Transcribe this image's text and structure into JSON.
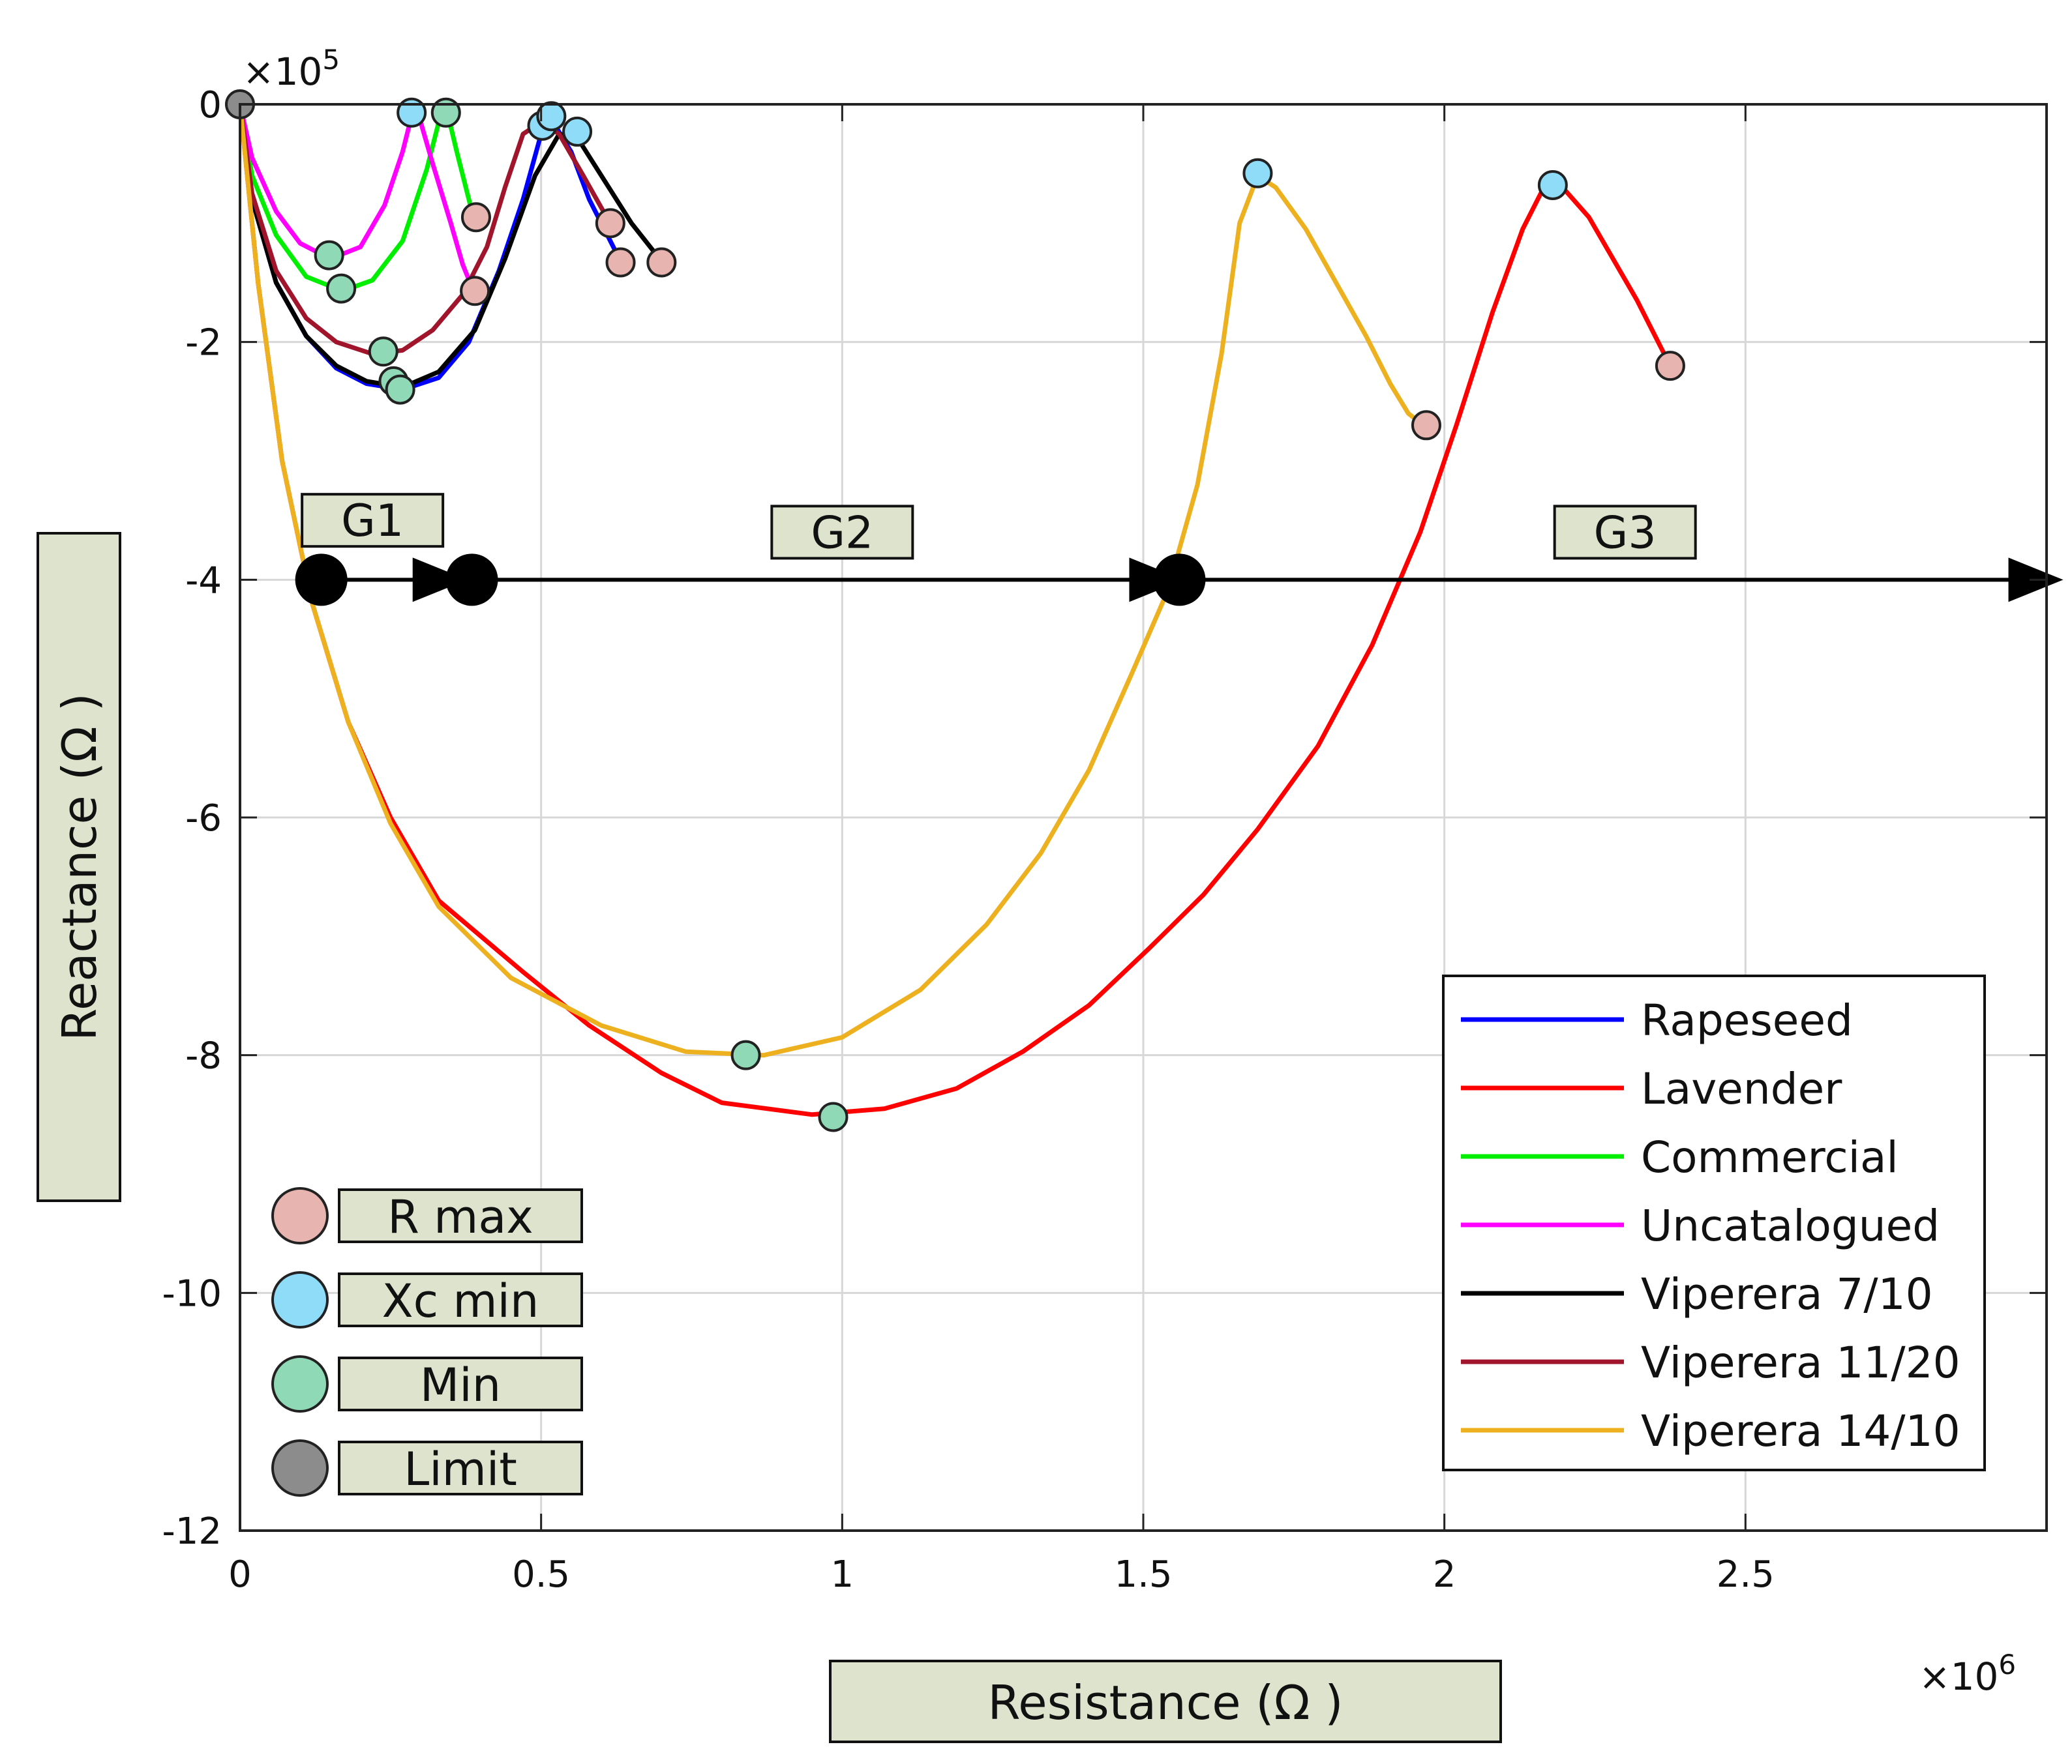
{
  "chart_data": {
    "type": "line",
    "xlabel": "Resistance (Ω )",
    "ylabel": "Reactance (Ω )",
    "x_multiplier": "×10",
    "x_multiplier_exp": "6",
    "y_multiplier": "×10",
    "y_multiplier_exp": "5",
    "xlim": [
      0,
      3.0
    ],
    "ylim": [
      -12,
      0
    ],
    "x_ticks": [
      0,
      0.5,
      1,
      1.5,
      2,
      2.5
    ],
    "x_tick_labels": [
      "0",
      "0.5",
      "1",
      "1.5",
      "2",
      "2.5"
    ],
    "y_ticks": [
      0,
      -2,
      -4,
      -6,
      -8,
      -10,
      -12
    ],
    "y_tick_labels": [
      "0",
      "-2",
      "-4",
      "-6",
      "-8",
      "-10",
      "-12"
    ],
    "grid": true,
    "legend_position": "bottom-right",
    "series": [
      {
        "name": "Rapeseed",
        "color": "#0000ff",
        "points": [
          [
            0,
            0
          ],
          [
            0.02,
            -0.8
          ],
          [
            0.06,
            -1.5
          ],
          [
            0.11,
            -1.95
          ],
          [
            0.16,
            -2.22
          ],
          [
            0.21,
            -2.35
          ],
          [
            0.27,
            -2.4
          ],
          [
            0.33,
            -2.3
          ],
          [
            0.38,
            -2.0
          ],
          [
            0.43,
            -1.4
          ],
          [
            0.47,
            -0.8
          ],
          [
            0.5,
            -0.25
          ],
          [
            0.52,
            -0.15
          ],
          [
            0.55,
            -0.4
          ],
          [
            0.58,
            -0.8
          ],
          [
            0.61,
            -1.1
          ],
          [
            0.635,
            -1.35
          ]
        ]
      },
      {
        "name": "Lavender",
        "color": "#ff0000",
        "points": [
          [
            0,
            0
          ],
          [
            0.03,
            -1.5
          ],
          [
            0.07,
            -3.0
          ],
          [
            0.12,
            -4.2
          ],
          [
            0.18,
            -5.2
          ],
          [
            0.25,
            -6.0
          ],
          [
            0.33,
            -6.7
          ],
          [
            0.47,
            -7.3
          ],
          [
            0.58,
            -7.75
          ],
          [
            0.7,
            -8.15
          ],
          [
            0.8,
            -8.4
          ],
          [
            0.95,
            -8.5
          ],
          [
            1.07,
            -8.45
          ],
          [
            1.19,
            -8.28
          ],
          [
            1.3,
            -7.97
          ],
          [
            1.41,
            -7.58
          ],
          [
            1.51,
            -7.1
          ],
          [
            1.6,
            -6.65
          ],
          [
            1.69,
            -6.1
          ],
          [
            1.79,
            -5.4
          ],
          [
            1.88,
            -4.55
          ],
          [
            1.96,
            -3.6
          ],
          [
            2.02,
            -2.7
          ],
          [
            2.08,
            -1.75
          ],
          [
            2.13,
            -1.05
          ],
          [
            2.16,
            -0.75
          ],
          [
            2.18,
            -0.7
          ],
          [
            2.2,
            -0.72
          ],
          [
            2.24,
            -0.95
          ],
          [
            2.28,
            -1.3
          ],
          [
            2.32,
            -1.65
          ],
          [
            2.36,
            -2.05
          ],
          [
            2.37,
            -2.15
          ]
        ]
      },
      {
        "name": "Commercial",
        "color": "#00ee00",
        "points": [
          [
            0,
            0
          ],
          [
            0.02,
            -0.6
          ],
          [
            0.06,
            -1.1
          ],
          [
            0.11,
            -1.45
          ],
          [
            0.17,
            -1.57
          ],
          [
            0.22,
            -1.48
          ],
          [
            0.27,
            -1.15
          ],
          [
            0.31,
            -0.55
          ],
          [
            0.33,
            -0.15
          ],
          [
            0.345,
            -0.08
          ],
          [
            0.36,
            -0.4
          ],
          [
            0.38,
            -0.8
          ],
          [
            0.39,
            -1.0
          ]
        ]
      },
      {
        "name": "Uncatalogued",
        "color": "#ff00ff",
        "points": [
          [
            0,
            0
          ],
          [
            0.02,
            -0.45
          ],
          [
            0.06,
            -0.9
          ],
          [
            0.1,
            -1.17
          ],
          [
            0.15,
            -1.3
          ],
          [
            0.2,
            -1.2
          ],
          [
            0.24,
            -0.85
          ],
          [
            0.27,
            -0.4
          ],
          [
            0.285,
            -0.1
          ],
          [
            0.3,
            -0.15
          ],
          [
            0.32,
            -0.5
          ],
          [
            0.35,
            -1.0
          ],
          [
            0.37,
            -1.35
          ],
          [
            0.39,
            -1.6
          ]
        ]
      },
      {
        "name": "Viperera 7/10",
        "color": "#000000",
        "points": [
          [
            0,
            0
          ],
          [
            0.02,
            -0.8
          ],
          [
            0.06,
            -1.5
          ],
          [
            0.11,
            -1.95
          ],
          [
            0.16,
            -2.2
          ],
          [
            0.21,
            -2.33
          ],
          [
            0.27,
            -2.38
          ],
          [
            0.33,
            -2.25
          ],
          [
            0.39,
            -1.9
          ],
          [
            0.44,
            -1.3
          ],
          [
            0.49,
            -0.6
          ],
          [
            0.53,
            -0.25
          ],
          [
            0.56,
            -0.28
          ],
          [
            0.6,
            -0.6
          ],
          [
            0.65,
            -1.0
          ],
          [
            0.7,
            -1.32
          ]
        ]
      },
      {
        "name": "Viperera 11/20",
        "color": "#a0152c",
        "points": [
          [
            0,
            0
          ],
          [
            0.02,
            -0.75
          ],
          [
            0.06,
            -1.4
          ],
          [
            0.11,
            -1.8
          ],
          [
            0.16,
            -2.0
          ],
          [
            0.22,
            -2.1
          ],
          [
            0.27,
            -2.07
          ],
          [
            0.32,
            -1.9
          ],
          [
            0.37,
            -1.6
          ],
          [
            0.41,
            -1.2
          ],
          [
            0.44,
            -0.7
          ],
          [
            0.47,
            -0.25
          ],
          [
            0.5,
            -0.15
          ],
          [
            0.53,
            -0.25
          ],
          [
            0.57,
            -0.6
          ],
          [
            0.62,
            -1.05
          ]
        ]
      },
      {
        "name": "Viperera 14/10",
        "color": "#edb120",
        "points": [
          [
            0,
            0
          ],
          [
            0.03,
            -1.5
          ],
          [
            0.07,
            -3.0
          ],
          [
            0.12,
            -4.2
          ],
          [
            0.18,
            -5.2
          ],
          [
            0.25,
            -6.05
          ],
          [
            0.33,
            -6.75
          ],
          [
            0.45,
            -7.35
          ],
          [
            0.6,
            -7.75
          ],
          [
            0.74,
            -7.97
          ],
          [
            0.87,
            -8.0
          ],
          [
            1.0,
            -7.85
          ],
          [
            1.13,
            -7.45
          ],
          [
            1.24,
            -6.9
          ],
          [
            1.33,
            -6.3
          ],
          [
            1.41,
            -5.6
          ],
          [
            1.48,
            -4.8
          ],
          [
            1.54,
            -4.1
          ],
          [
            1.59,
            -3.2
          ],
          [
            1.63,
            -2.1
          ],
          [
            1.66,
            -1.0
          ],
          [
            1.69,
            -0.6
          ],
          [
            1.72,
            -0.7
          ],
          [
            1.77,
            -1.05
          ],
          [
            1.82,
            -1.5
          ],
          [
            1.87,
            -1.95
          ],
          [
            1.91,
            -2.35
          ],
          [
            1.94,
            -2.6
          ],
          [
            1.97,
            -2.72
          ]
        ]
      }
    ],
    "markers": [
      {
        "kind": "limit",
        "x": 0,
        "y": 0
      },
      {
        "kind": "min",
        "x": 0.148,
        "y": -1.27
      },
      {
        "kind": "min",
        "x": 0.168,
        "y": -1.55
      },
      {
        "kind": "min",
        "x": 0.238,
        "y": -2.08
      },
      {
        "kind": "min",
        "x": 0.255,
        "y": -2.33
      },
      {
        "kind": "min",
        "x": 0.266,
        "y": -2.4
      },
      {
        "kind": "xcmin",
        "x": 0.285,
        "y": -0.07
      },
      {
        "kind": "min",
        "x": 0.342,
        "y": -0.07
      },
      {
        "kind": "rmax",
        "x": 0.392,
        "y": -0.95
      },
      {
        "kind": "rmax",
        "x": 0.39,
        "y": -1.57
      },
      {
        "kind": "xcmin",
        "x": 0.502,
        "y": -0.18
      },
      {
        "kind": "xcmin",
        "x": 0.517,
        "y": -0.1
      },
      {
        "kind": "xcmin",
        "x": 0.56,
        "y": -0.23
      },
      {
        "kind": "rmax",
        "x": 0.615,
        "y": -1.0
      },
      {
        "kind": "rmax",
        "x": 0.632,
        "y": -1.33
      },
      {
        "kind": "rmax",
        "x": 0.7,
        "y": -1.33
      },
      {
        "kind": "min",
        "x": 0.84,
        "y": -8.0
      },
      {
        "kind": "min",
        "x": 0.985,
        "y": -8.52
      },
      {
        "kind": "xcmin",
        "x": 1.69,
        "y": -0.58
      },
      {
        "kind": "rmax",
        "x": 1.97,
        "y": -2.7
      },
      {
        "kind": "xcmin",
        "x": 2.18,
        "y": -0.68
      },
      {
        "kind": "rmax",
        "x": 2.375,
        "y": -2.2
      }
    ],
    "marker_colors": {
      "rmax": "#e8b4b0",
      "xcmin": "#8fdcf8",
      "min": "#8fd9b6",
      "limit": "#8c8c8c"
    },
    "group_line": {
      "y": -4,
      "dots": [
        0.135,
        0.385,
        1.56
      ],
      "arrows": [
        0.33,
        1.52,
        2.98
      ],
      "groups": [
        {
          "label": "G1",
          "x": 0.22,
          "y": -3.5
        },
        {
          "label": "G2",
          "x": 1.0,
          "y": -3.6
        },
        {
          "label": "G3",
          "x": 2.3,
          "y": -3.6
        }
      ]
    },
    "marker_legend": [
      {
        "kind": "rmax",
        "label": "R max"
      },
      {
        "kind": "xcmin",
        "label": "Xc min"
      },
      {
        "kind": "min",
        "label": "Min"
      },
      {
        "kind": "limit",
        "label": "Limit"
      }
    ]
  },
  "theme": {
    "box_fill": "#dde3cc",
    "grid": "#d7d7d7",
    "axis": "#222222"
  }
}
